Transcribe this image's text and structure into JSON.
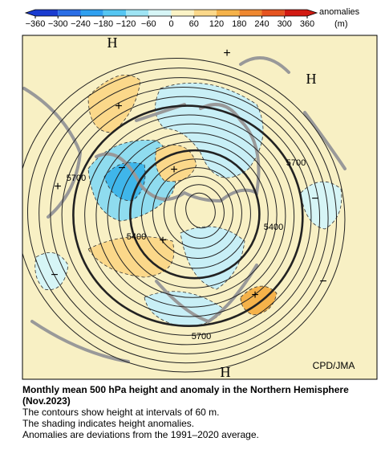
{
  "colorbar": {
    "title": "anomalies",
    "unit": "(m)",
    "ticks": [
      {
        "value": -360,
        "label": "−360"
      },
      {
        "value": -300,
        "label": "−300"
      },
      {
        "value": -240,
        "label": "−240"
      },
      {
        "value": -180,
        "label": "−180"
      },
      {
        "value": -120,
        "label": "−120"
      },
      {
        "value": -60,
        "label": "−60"
      },
      0,
      60,
      120,
      180,
      240,
      300,
      360
    ],
    "colors": [
      "#1a3cd0",
      "#2a6ee6",
      "#2fa0f0",
      "#55c6f2",
      "#9ee4f4",
      "#d6f5f6",
      "#fbf3c6",
      "#fbd88a",
      "#f5b24a",
      "#ef8830",
      "#e65420",
      "#d21a12"
    ]
  },
  "map": {
    "labels": [
      "H",
      "H",
      "H",
      "+",
      "+",
      "+",
      "+",
      "+",
      "+",
      "−",
      "−",
      "−",
      "−",
      "5700",
      "5700",
      "5400",
      "5400",
      "5700"
    ],
    "credit": "CPD/JMA"
  },
  "caption": {
    "title": "Monthly mean 500 hPa height and anomaly in the Northern Hemisphere (Nov.2023)",
    "lines": [
      "The contours show height at intervals of 60 m.",
      "The shading indicates height anomalies.",
      "Anomalies are deviations from the 1991–2020 average."
    ]
  }
}
